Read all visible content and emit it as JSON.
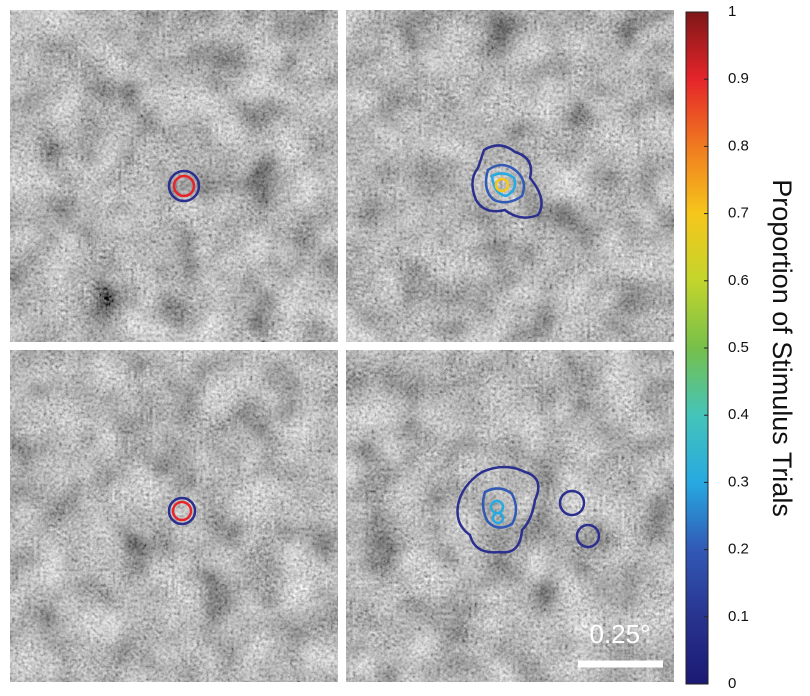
{
  "colorbar": {
    "label": "Proportion of Stimulus Trials",
    "lim": [
      0,
      1
    ],
    "ticks": [
      0,
      0.1,
      0.2,
      0.3,
      0.4,
      0.5,
      0.6,
      0.7,
      0.8,
      0.9,
      1
    ]
  },
  "scale_bar": {
    "label": "0.25°"
  }
}
